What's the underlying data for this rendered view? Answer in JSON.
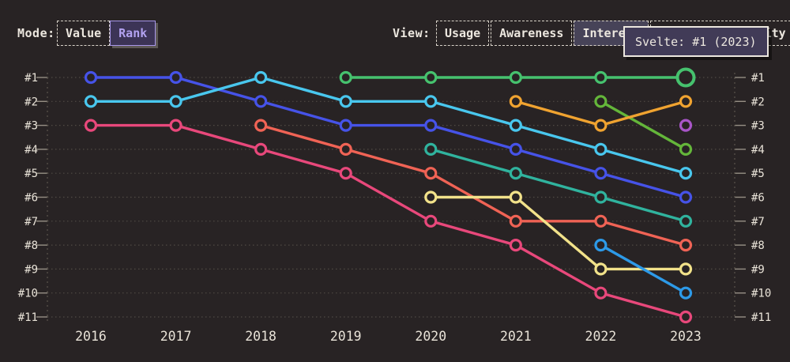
{
  "colors": {
    "background": "#282324",
    "text": "#ece7df",
    "grid": "#4f4a43",
    "axis": "#5a544c",
    "tick": "#968f85",
    "selected_mode_text": "#b2a2f0",
    "selected_mode_bg": "#3c3456",
    "selected_view_bg": "#474358",
    "tooltip_bg": "#413b57"
  },
  "controls": {
    "mode": {
      "label": "Mode:",
      "options": [
        {
          "label": "Value",
          "selected": false
        },
        {
          "label": "Rank",
          "selected": true
        }
      ]
    },
    "view": {
      "label": "View:",
      "options": [
        {
          "label": "Usage",
          "selected": false
        },
        {
          "label": "Awareness",
          "selected": false
        },
        {
          "label": "Interest",
          "selected": true
        },
        {
          "label": "Positivity",
          "selected": false
        }
      ]
    }
  },
  "tooltip": {
    "text": "Svelte: #1 (2023)"
  },
  "chart_data": {
    "type": "line",
    "subtype": "bump-rank",
    "x": [
      2016,
      2017,
      2018,
      2019,
      2020,
      2021,
      2022,
      2023
    ],
    "y_axis": {
      "labels": [
        "#1",
        "#2",
        "#3",
        "#4",
        "#5",
        "#6",
        "#7",
        "#8",
        "#9",
        "#10",
        "#11"
      ],
      "min": 1,
      "max": 11,
      "inverted": true,
      "shown_on_both_sides": true
    },
    "grid": "dotted-horizontal",
    "legend_position": "none",
    "series": [
      {
        "name": "series-pink",
        "color": "#e8487b",
        "values": [
          3,
          3,
          4,
          5,
          7,
          8,
          10,
          11
        ]
      },
      {
        "name": "series-coral",
        "color": "#f06355",
        "values": [
          null,
          null,
          3,
          4,
          5,
          7,
          7,
          8
        ]
      },
      {
        "name": "series-blue",
        "color": "#4653e8",
        "values": [
          1,
          1,
          2,
          3,
          3,
          4,
          5,
          6
        ]
      },
      {
        "name": "series-cyan",
        "color": "#49c7ee",
        "values": [
          2,
          2,
          1,
          2,
          2,
          3,
          4,
          5
        ]
      },
      {
        "name": "series-teal",
        "color": "#30b39e",
        "values": [
          null,
          null,
          null,
          null,
          4,
          5,
          6,
          7
        ]
      },
      {
        "name": "Svelte",
        "color": "#46c26e",
        "values": [
          null,
          null,
          null,
          1,
          1,
          1,
          1,
          1
        ],
        "highlight_last": true
      },
      {
        "name": "series-lightgreen",
        "color": "#64b63a",
        "values": [
          null,
          null,
          null,
          null,
          null,
          null,
          2,
          4
        ]
      },
      {
        "name": "series-orange",
        "color": "#f0a330",
        "values": [
          null,
          null,
          null,
          null,
          null,
          2,
          3,
          2
        ]
      },
      {
        "name": "series-yellow",
        "color": "#f2e28a",
        "values": [
          null,
          null,
          null,
          null,
          6,
          6,
          9,
          9
        ]
      },
      {
        "name": "series-skyblue",
        "color": "#2d9ae8",
        "values": [
          null,
          null,
          null,
          null,
          null,
          null,
          8,
          10
        ]
      },
      {
        "name": "series-purple",
        "color": "#a855c8",
        "values": [
          null,
          null,
          null,
          null,
          null,
          null,
          null,
          3
        ]
      }
    ]
  }
}
